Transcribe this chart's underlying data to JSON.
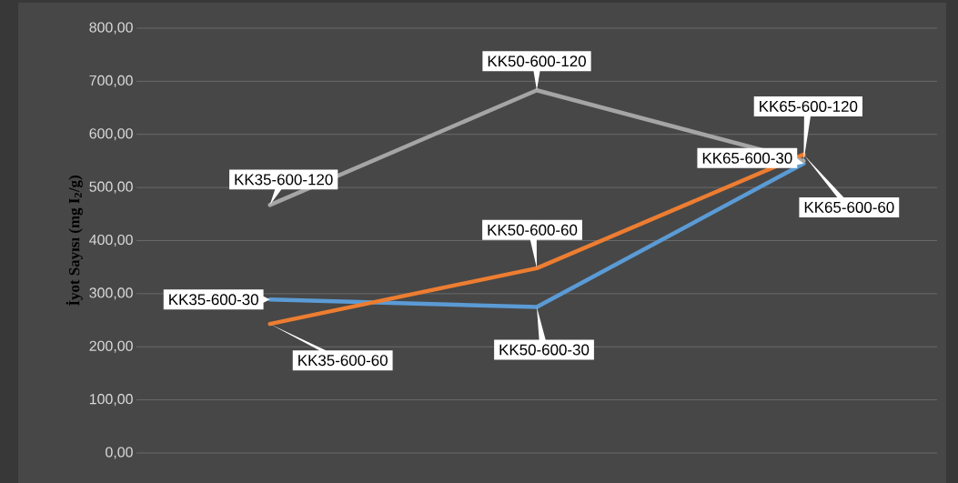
{
  "chart_data": {
    "type": "line",
    "ylabel": "İyot Sayısı (mg I$_{2}$/g)",
    "categories": [
      null,
      null,
      null
    ],
    "series": [
      {
        "color": "#5b9bd5",
        "values": [
          289,
          275,
          545
        ],
        "value_labels": [
          "KK35-600-30",
          "KK50-600-30",
          "KK65-600-30"
        ]
      },
      {
        "color": "#ed7d31",
        "values": [
          243,
          348,
          562
        ],
        "value_labels": [
          "KK35-600-60",
          "KK50-600-60",
          "KK65-600-60"
        ]
      },
      {
        "color": "#a5a5a5",
        "values": [
          467,
          683,
          550
        ],
        "value_labels": [
          "KK35-600-120",
          "KK50-600-120",
          "KK65-600-120"
        ]
      }
    ],
    "ylim": [
      0,
      800
    ],
    "yticks": [
      {
        "value": 0,
        "label": "0,00"
      },
      {
        "value": 100,
        "label": "100,00"
      },
      {
        "value": 200,
        "label": "200,00"
      },
      {
        "value": 300,
        "label": "300,00"
      },
      {
        "value": 400,
        "label": "400,00"
      },
      {
        "value": 500,
        "label": "500,00"
      },
      {
        "value": 600,
        "label": "600,00"
      },
      {
        "value": 700,
        "label": "700,00"
      },
      {
        "value": 800,
        "label": "800,00"
      }
    ],
    "grid": "y",
    "tick_labels": "y"
  }
}
